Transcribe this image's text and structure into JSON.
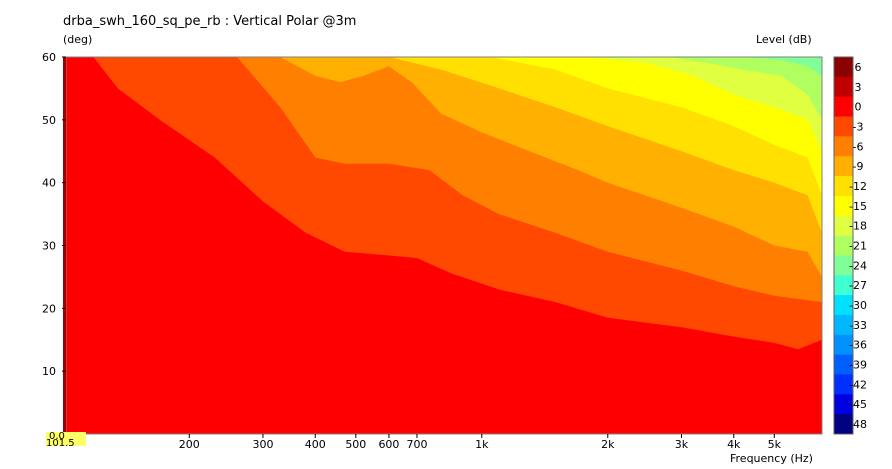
{
  "title": "drba_swh_160_sq_pe_rb : Vertical Polar @3m",
  "ylabel": "(deg)",
  "zlabel": "Level  (dB)",
  "xlabel": "Frequency  (Hz)",
  "corner_labels": {
    "x_start": "101.5",
    "y_zero": "0.0"
  },
  "chart_data": {
    "type": "heatmap",
    "title": "drba_swh_160_sq_pe_rb : Vertical Polar @3m",
    "xlabel": "Frequency  (Hz)",
    "ylabel": "(deg)",
    "zlabel": "Level  (dB)",
    "xscale": "log",
    "xlim": [
      101.5,
      6500
    ],
    "ylim": [
      0,
      60
    ],
    "x_ticks": [
      {
        "value": 200,
        "label": "200"
      },
      {
        "value": 300,
        "label": "300"
      },
      {
        "value": 400,
        "label": "400"
      },
      {
        "value": 500,
        "label": "500"
      },
      {
        "value": 600,
        "label": "600"
      },
      {
        "value": 700,
        "label": "700"
      },
      {
        "value": 1000,
        "label": "1k"
      },
      {
        "value": 2000,
        "label": "2k"
      },
      {
        "value": 3000,
        "label": "3k"
      },
      {
        "value": 4000,
        "label": "4k"
      },
      {
        "value": 5000,
        "label": "5k"
      }
    ],
    "y_ticks": [
      0,
      10,
      20,
      30,
      40,
      50,
      60
    ],
    "colorbar_levels": [
      6,
      3,
      0,
      -3,
      -6,
      -9,
      -12,
      -15,
      -18,
      -21,
      -24,
      -27,
      -30,
      -33,
      -36,
      -39,
      -42,
      -45,
      -48
    ],
    "colorbar_colors": [
      "#8b0000",
      "#c00000",
      "#ff0000",
      "#ff4800",
      "#ff8000",
      "#ffb000",
      "#ffe000",
      "#ffff00",
      "#e0ff40",
      "#b0ff60",
      "#80ff98",
      "#40ffd0",
      "#00e0ff",
      "#00b8ff",
      "#0090ff",
      "#0060ff",
      "#0030ff",
      "#0000e0",
      "#000080"
    ],
    "contours": [
      {
        "level": -3,
        "color": "#ff4800",
        "points": [
          [
            118,
            60
          ],
          [
            135,
            55
          ],
          [
            170,
            50
          ],
          [
            230,
            44
          ],
          [
            300,
            37
          ],
          [
            380,
            32
          ],
          [
            470,
            29
          ],
          [
            580,
            28.5
          ],
          [
            700,
            28
          ],
          [
            850,
            25.5
          ],
          [
            1100,
            23
          ],
          [
            1500,
            21
          ],
          [
            2000,
            18.5
          ],
          [
            3000,
            17
          ],
          [
            4000,
            15.5
          ],
          [
            5000,
            14.5
          ],
          [
            5700,
            13.5
          ],
          [
            6500,
            15
          ]
        ]
      },
      {
        "level": -6,
        "color": "#ff8000",
        "points": [
          [
            260,
            60
          ],
          [
            330,
            52
          ],
          [
            400,
            44
          ],
          [
            470,
            43
          ],
          [
            600,
            43
          ],
          [
            750,
            42
          ],
          [
            900,
            38
          ],
          [
            1100,
            35
          ],
          [
            1500,
            32
          ],
          [
            2000,
            29
          ],
          [
            3000,
            26
          ],
          [
            4000,
            23.5
          ],
          [
            5000,
            22
          ],
          [
            6500,
            21
          ]
        ]
      },
      {
        "level": -9,
        "color": "#ffb000",
        "points": [
          [
            330,
            60
          ],
          [
            400,
            57
          ],
          [
            460,
            56
          ],
          [
            520,
            57
          ],
          [
            600,
            58.5
          ],
          [
            680,
            56
          ],
          [
            800,
            51
          ],
          [
            1000,
            48
          ],
          [
            1300,
            45
          ],
          [
            1700,
            42
          ],
          [
            2000,
            40
          ],
          [
            3000,
            36
          ],
          [
            4000,
            33
          ],
          [
            5000,
            30
          ],
          [
            6000,
            29
          ],
          [
            6500,
            25
          ]
        ]
      },
      {
        "level": -12,
        "color": "#ffe000",
        "points": [
          [
            470,
            60
          ],
          [
            600,
            60
          ],
          [
            800,
            58
          ],
          [
            1100,
            55
          ],
          [
            1500,
            52
          ],
          [
            2000,
            49
          ],
          [
            3000,
            45
          ],
          [
            4000,
            42
          ],
          [
            5000,
            40
          ],
          [
            6000,
            38
          ],
          [
            6500,
            32
          ]
        ]
      },
      {
        "level": -15,
        "color": "#ffff00",
        "points": [
          [
            1050,
            60
          ],
          [
            1500,
            58
          ],
          [
            2000,
            55
          ],
          [
            3000,
            52
          ],
          [
            4000,
            49
          ],
          [
            5000,
            46
          ],
          [
            6000,
            44
          ],
          [
            6500,
            38
          ]
        ]
      },
      {
        "level": -18,
        "color": "#e0ff40",
        "points": [
          [
            1800,
            60
          ],
          [
            2500,
            59
          ],
          [
            3200,
            57
          ],
          [
            4000,
            54
          ],
          [
            5000,
            52
          ],
          [
            6000,
            50
          ],
          [
            6500,
            45
          ]
        ]
      },
      {
        "level": -21,
        "color": "#b0ff60",
        "points": [
          [
            2800,
            60
          ],
          [
            3500,
            59
          ],
          [
            4200,
            58
          ],
          [
            5200,
            57
          ],
          [
            6000,
            54
          ],
          [
            6500,
            50
          ]
        ]
      },
      {
        "level": -24,
        "color": "#80ff98",
        "points": [
          [
            4200,
            60
          ],
          [
            5200,
            59.5
          ],
          [
            6000,
            58.5
          ],
          [
            6500,
            57
          ]
        ]
      }
    ]
  }
}
